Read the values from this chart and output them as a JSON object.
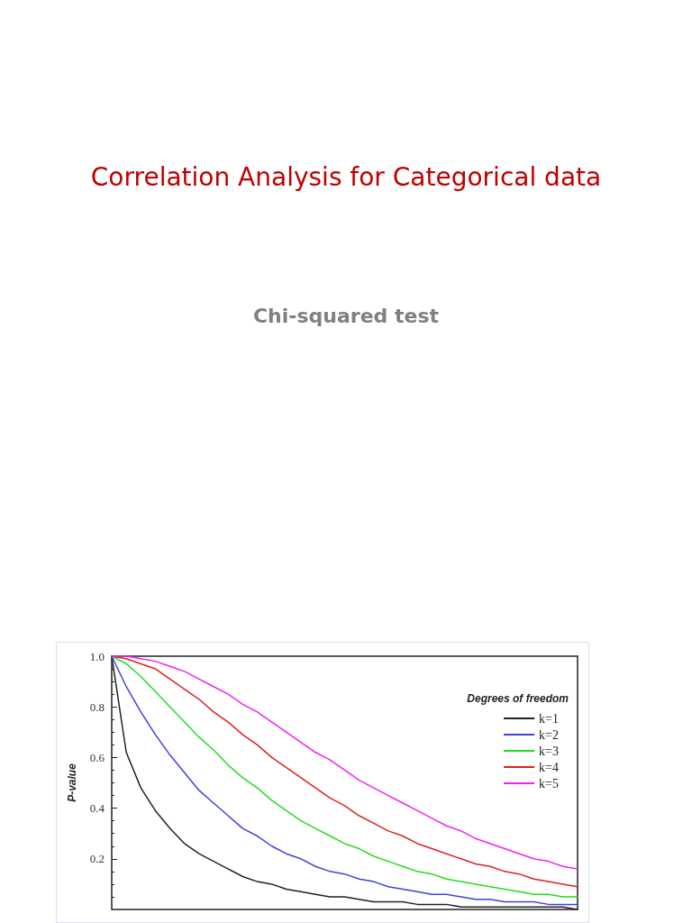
{
  "chart_data": {
    "type": "line",
    "title": "Correlation Analysis for Categorical data",
    "subtitle": "Chi-squared test",
    "ylabel": "P-value",
    "legend_title": "Degrees of freedom",
    "categories": [
      null,
      null,
      null,
      null,
      null,
      null,
      null,
      null,
      null,
      null,
      null,
      null,
      null,
      null,
      null,
      null,
      null,
      null,
      null,
      null,
      null,
      null,
      null,
      null,
      null,
      null,
      null,
      null,
      null,
      null,
      null,
      null,
      null
    ],
    "series": [
      {
        "name": "k=1",
        "color": "#222222",
        "values": [
          1,
          0.62,
          0.48,
          0.39,
          0.32,
          0.26,
          0.22,
          0.19,
          0.16,
          0.13,
          0.11,
          0.1,
          0.08,
          0.07,
          0.06,
          0.05,
          0.05,
          0.04,
          0.03,
          0.03,
          0.03,
          0.02,
          0.02,
          0.02,
          0.01,
          0.01,
          0.01,
          0.01,
          0.01,
          0.01,
          0.01,
          0.01,
          0.0
        ]
      },
      {
        "name": "k=2",
        "color": "#4040e0",
        "values": [
          1,
          0.88,
          0.78,
          0.69,
          0.61,
          0.54,
          0.47,
          0.42,
          0.37,
          0.32,
          0.29,
          0.25,
          0.22,
          0.2,
          0.17,
          0.15,
          0.14,
          0.12,
          0.11,
          0.09,
          0.08,
          0.07,
          0.06,
          0.06,
          0.05,
          0.04,
          0.04,
          0.03,
          0.03,
          0.03,
          0.02,
          0.02,
          0.02
        ]
      },
      {
        "name": "k=3",
        "color": "#22dd22",
        "values": [
          1,
          0.97,
          0.92,
          0.86,
          0.8,
          0.74,
          0.68,
          0.63,
          0.57,
          0.52,
          0.48,
          0.43,
          0.39,
          0.35,
          0.32,
          0.29,
          0.26,
          0.24,
          0.21,
          0.19,
          0.17,
          0.15,
          0.14,
          0.12,
          0.11,
          0.1,
          0.09,
          0.08,
          0.07,
          0.06,
          0.06,
          0.05,
          0.05
        ]
      },
      {
        "name": "k=4",
        "color": "#e02020",
        "values": [
          1,
          0.99,
          0.97,
          0.95,
          0.91,
          0.87,
          0.83,
          0.78,
          0.74,
          0.69,
          0.65,
          0.6,
          0.56,
          0.52,
          0.48,
          0.44,
          0.41,
          0.37,
          0.34,
          0.31,
          0.29,
          0.26,
          0.24,
          0.22,
          0.2,
          0.18,
          0.17,
          0.15,
          0.14,
          0.12,
          0.11,
          0.1,
          0.09
        ]
      },
      {
        "name": "k=5",
        "color": "#ee22ee",
        "values": [
          1,
          1.0,
          0.99,
          0.98,
          0.96,
          0.94,
          0.91,
          0.88,
          0.85,
          0.81,
          0.78,
          0.74,
          0.7,
          0.66,
          0.62,
          0.59,
          0.55,
          0.51,
          0.48,
          0.45,
          0.42,
          0.39,
          0.36,
          0.33,
          0.31,
          0.28,
          0.26,
          0.24,
          0.22,
          0.2,
          0.19,
          0.17,
          0.16
        ]
      }
    ],
    "ylim": [
      0,
      1
    ],
    "yticks": [
      0.2,
      0.4,
      0.6,
      0.8,
      {
        "value": 1,
        "label": "1.0"
      }
    ],
    "grid": false,
    "legend": "top right",
    "marker": "none",
    "line_style": "solid",
    "tick_labels": "y"
  }
}
